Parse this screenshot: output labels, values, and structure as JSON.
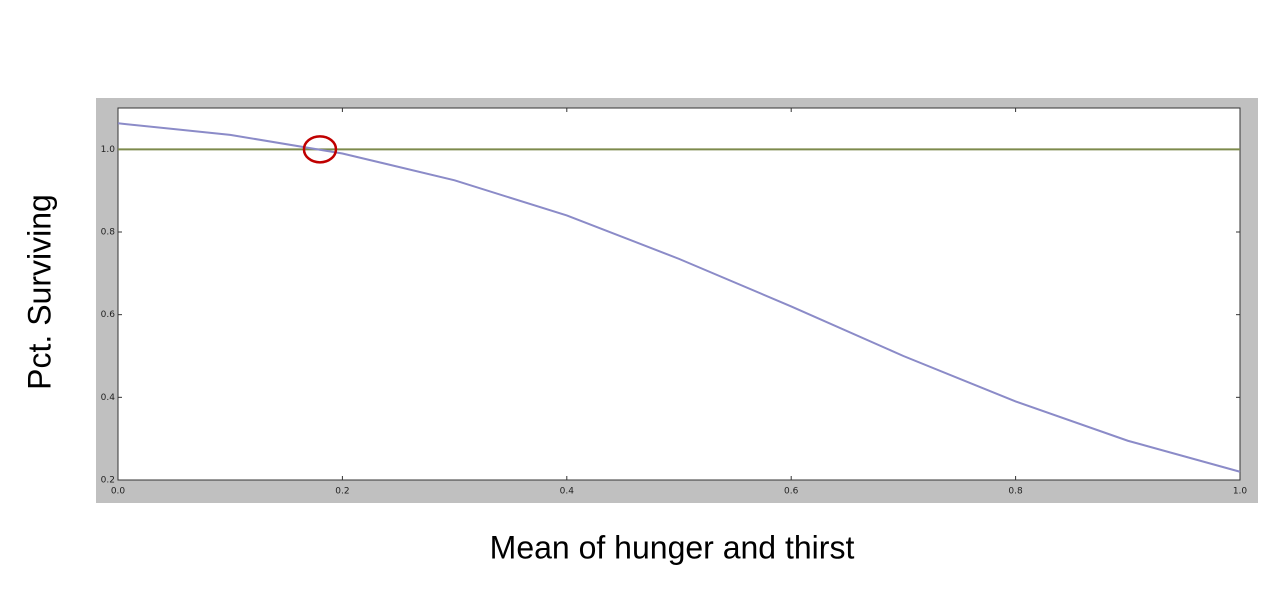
{
  "chart_data": {
    "type": "line",
    "x_label": "Mean of hunger and thirst",
    "y_label": "Pct. Surviving",
    "x": [
      0.0,
      0.1,
      0.2,
      0.3,
      0.4,
      0.5,
      0.6,
      0.7,
      0.8,
      0.9,
      1.0
    ],
    "series": [
      {
        "color": "#8b8bc8",
        "values": [
          1.063,
          1.035,
          0.99,
          0.925,
          0.84,
          0.735,
          0.62,
          0.5,
          0.39,
          0.295,
          0.22
        ]
      },
      {
        "color": "#7d8a4c",
        "values": [
          1.0,
          1.0,
          1.0,
          1.0,
          1.0,
          1.0,
          1.0,
          1.0,
          1.0,
          1.0,
          1.0
        ]
      }
    ],
    "highlight_point": {
      "x": 0.18,
      "y": 1.0,
      "color": "#c00000"
    },
    "xlim": [
      0,
      1
    ],
    "ylim": [
      0.2,
      1.1
    ],
    "xticks": [
      {
        "value": 0,
        "label": "0.0"
      },
      0.2,
      0.4,
      0.6,
      0.8,
      {
        "value": 1,
        "label": "1.0"
      }
    ],
    "yticks": [
      0.2,
      0.4,
      0.6,
      0.8,
      {
        "value": 1,
        "label": "1.0"
      }
    ]
  }
}
